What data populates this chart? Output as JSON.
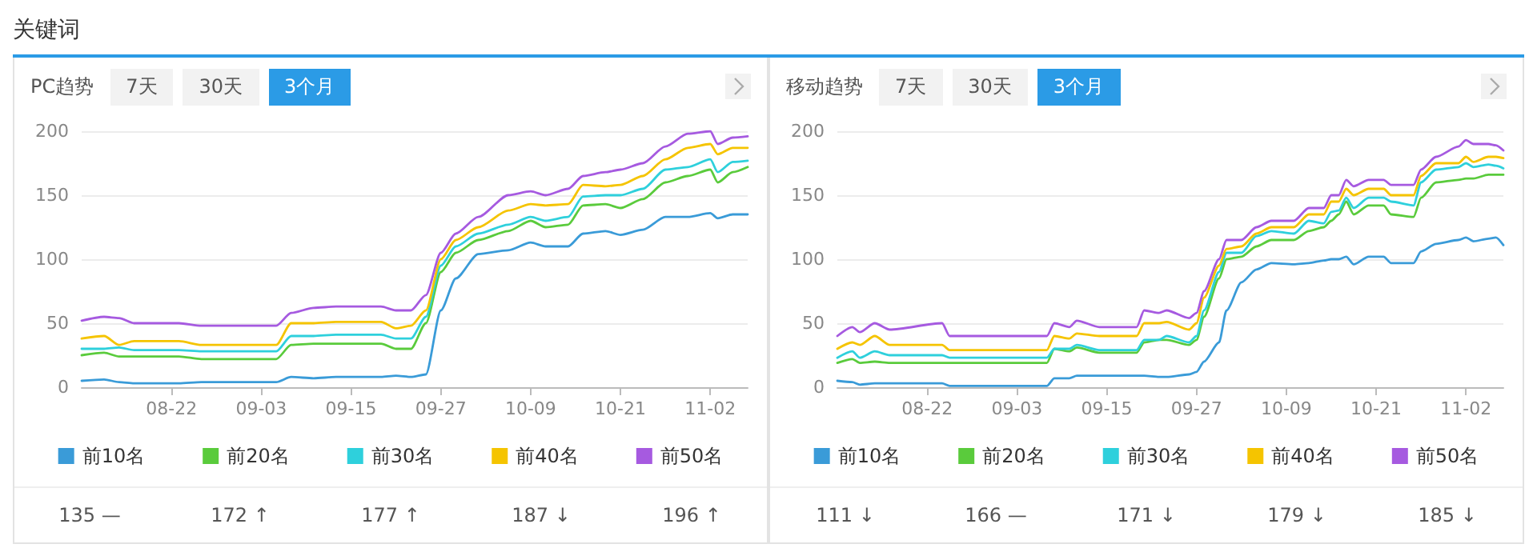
{
  "chart_data": [
    {
      "type": "other",
      "title": "关键词"
    },
    {
      "type": "line",
      "title": "PC趋势",
      "annotations": [
        "7天",
        "30天",
        "3个月"
      ],
      "value_labels": [
        "135 —",
        "172 ↑",
        "177 ↑",
        "187 ↓",
        "196 ↑"
      ],
      "x": [
        "--08-10",
        "--08-13",
        "--08-15",
        "--08-17",
        "--08-23",
        "--08-26",
        "--09-05",
        "--09-07",
        "--09-10",
        "--09-13",
        "--09-19",
        "--09-21",
        "--09-23",
        "--09-25",
        "--09-27",
        "--09-29",
        "--10-02",
        "--10-06",
        "--10-09",
        "--10-11",
        "--10-14",
        "--10-16",
        "--10-19",
        "--10-21",
        "--10-24",
        "--10-27",
        "--10-30",
        "--11-02",
        "--11-03",
        "--11-05",
        "--11-07"
      ],
      "series": [
        {
          "name": "前10名",
          "color": "#3a9bd8",
          "values": [
            5,
            6,
            4,
            3,
            3,
            4,
            4,
            8,
            7,
            8,
            8,
            9,
            8,
            10,
            60,
            85,
            104,
            107,
            113,
            110,
            110,
            120,
            122,
            119,
            123,
            133,
            133,
            136,
            132,
            135,
            135
          ]
        },
        {
          "name": "前20名",
          "color": "#5acb3c",
          "values": [
            25,
            27,
            24,
            24,
            24,
            22,
            22,
            33,
            34,
            34,
            34,
            30,
            30,
            50,
            90,
            105,
            115,
            122,
            130,
            125,
            127,
            142,
            143,
            140,
            147,
            160,
            165,
            170,
            160,
            168,
            172
          ]
        },
        {
          "name": "前30名",
          "color": "#2ed0dc",
          "values": [
            30,
            30,
            31,
            29,
            29,
            28,
            28,
            40,
            40,
            41,
            41,
            38,
            38,
            55,
            95,
            110,
            120,
            127,
            133,
            130,
            133,
            149,
            150,
            150,
            155,
            170,
            172,
            178,
            168,
            176,
            177
          ]
        },
        {
          "name": "前40名",
          "color": "#f5c400",
          "values": [
            38,
            40,
            33,
            36,
            36,
            33,
            33,
            50,
            50,
            51,
            51,
            46,
            48,
            60,
            100,
            115,
            125,
            138,
            143,
            142,
            143,
            158,
            157,
            158,
            165,
            178,
            187,
            190,
            182,
            187,
            187
          ]
        },
        {
          "name": "前50名",
          "color": "#a65ae0",
          "values": [
            52,
            55,
            54,
            50,
            50,
            48,
            48,
            58,
            62,
            63,
            63,
            60,
            60,
            72,
            105,
            120,
            133,
            150,
            153,
            150,
            155,
            165,
            168,
            170,
            175,
            188,
            198,
            200,
            190,
            195,
            196
          ]
        }
      ],
      "xlim": [
        "--08-10",
        "--11-07"
      ],
      "xticks": [
        {
          "value": "--08-22",
          "label": "08-22"
        },
        {
          "value": "--09-03",
          "label": "09-03"
        },
        {
          "value": "--09-15",
          "label": "09-15"
        },
        {
          "value": "--09-27",
          "label": "09-27"
        },
        {
          "value": "--10-09",
          "label": "10-09"
        },
        {
          "value": "--10-21",
          "label": "10-21"
        },
        {
          "value": "--11-02",
          "label": "11-02"
        }
      ],
      "ylim": [
        0,
        200
      ],
      "yticks": [
        0,
        50,
        100,
        150,
        200
      ],
      "grid": "y",
      "legend": "bottom",
      "marker": "none",
      "line_style": "solid"
    },
    {
      "type": "line",
      "title": "移动趋势",
      "annotations": [
        "7天",
        "30天",
        "3个月"
      ],
      "value_labels": [
        "111 ↓",
        "166 —",
        "171 ↓",
        "179 ↓",
        "185 ↓"
      ],
      "x": [
        "--08-10",
        "--08-12",
        "--08-13",
        "--08-15",
        "--08-17",
        "--08-24",
        "--08-25",
        "--09-07",
        "--09-08",
        "--09-10",
        "--09-11",
        "--09-14",
        "--09-19",
        "--09-20",
        "--09-22",
        "--09-23",
        "--09-26",
        "--09-27",
        "--09-28",
        "--09-30",
        "--10-01",
        "--10-03",
        "--10-05",
        "--10-07",
        "--10-10",
        "--10-12",
        "--10-14",
        "--10-15",
        "--10-16",
        "--10-17",
        "--10-18",
        "--10-20",
        "--10-22",
        "--10-23",
        "--10-26",
        "--10-27",
        "--10-29",
        "--11-01",
        "--11-02",
        "--11-03",
        "--11-05",
        "--11-06",
        "--11-07"
      ],
      "series": [
        {
          "name": "前10名",
          "color": "#3a9bd8",
          "values": [
            5,
            4,
            2,
            3,
            3,
            3,
            1,
            1,
            7,
            7,
            9,
            9,
            9,
            9,
            8,
            8,
            10,
            12,
            20,
            35,
            60,
            82,
            92,
            97,
            96,
            97,
            99,
            100,
            100,
            102,
            96,
            102,
            102,
            97,
            97,
            106,
            112,
            115,
            117,
            114,
            116,
            117,
            111
          ]
        },
        {
          "name": "前20名",
          "color": "#5acb3c",
          "values": [
            19,
            22,
            19,
            20,
            19,
            19,
            19,
            19,
            30,
            28,
            31,
            27,
            27,
            35,
            37,
            37,
            33,
            37,
            55,
            85,
            100,
            102,
            110,
            115,
            115,
            122,
            125,
            130,
            135,
            145,
            135,
            142,
            142,
            135,
            133,
            148,
            160,
            162,
            163,
            163,
            166,
            166,
            166
          ]
        },
        {
          "name": "前30名",
          "color": "#2ed0dc",
          "values": [
            23,
            28,
            23,
            28,
            25,
            25,
            23,
            23,
            30,
            30,
            33,
            29,
            29,
            37,
            37,
            40,
            35,
            40,
            60,
            90,
            105,
            105,
            118,
            122,
            120,
            130,
            128,
            137,
            138,
            148,
            140,
            148,
            148,
            145,
            142,
            160,
            170,
            172,
            175,
            172,
            174,
            173,
            171
          ]
        },
        {
          "name": "前40名",
          "color": "#f5c400",
          "values": [
            30,
            35,
            33,
            40,
            33,
            33,
            29,
            29,
            40,
            38,
            42,
            40,
            40,
            50,
            50,
            51,
            45,
            50,
            70,
            95,
            108,
            110,
            120,
            125,
            125,
            135,
            135,
            145,
            145,
            155,
            150,
            155,
            155,
            150,
            150,
            165,
            175,
            175,
            180,
            176,
            180,
            180,
            179
          ]
        },
        {
          "name": "前50名",
          "color": "#a65ae0",
          "values": [
            40,
            47,
            43,
            50,
            45,
            50,
            40,
            40,
            50,
            47,
            52,
            47,
            47,
            60,
            58,
            60,
            54,
            58,
            75,
            100,
            115,
            115,
            125,
            130,
            130,
            140,
            140,
            150,
            150,
            162,
            157,
            162,
            162,
            158,
            158,
            170,
            180,
            188,
            193,
            190,
            190,
            189,
            185
          ]
        }
      ],
      "xlim": [
        "--08-10",
        "--11-07"
      ],
      "xticks": [
        {
          "value": "--08-22",
          "label": "08-22"
        },
        {
          "value": "--09-03",
          "label": "09-03"
        },
        {
          "value": "--09-15",
          "label": "09-15"
        },
        {
          "value": "--09-27",
          "label": "09-27"
        },
        {
          "value": "--10-09",
          "label": "10-09"
        },
        {
          "value": "--10-21",
          "label": "10-21"
        },
        {
          "value": "--11-02",
          "label": "11-02"
        }
      ],
      "ylim": [
        0,
        200
      ],
      "yticks": [
        0,
        50,
        100,
        150,
        200
      ],
      "grid": "y",
      "legend": "bottom",
      "marker": "none",
      "line_style": "solid"
    }
  ]
}
